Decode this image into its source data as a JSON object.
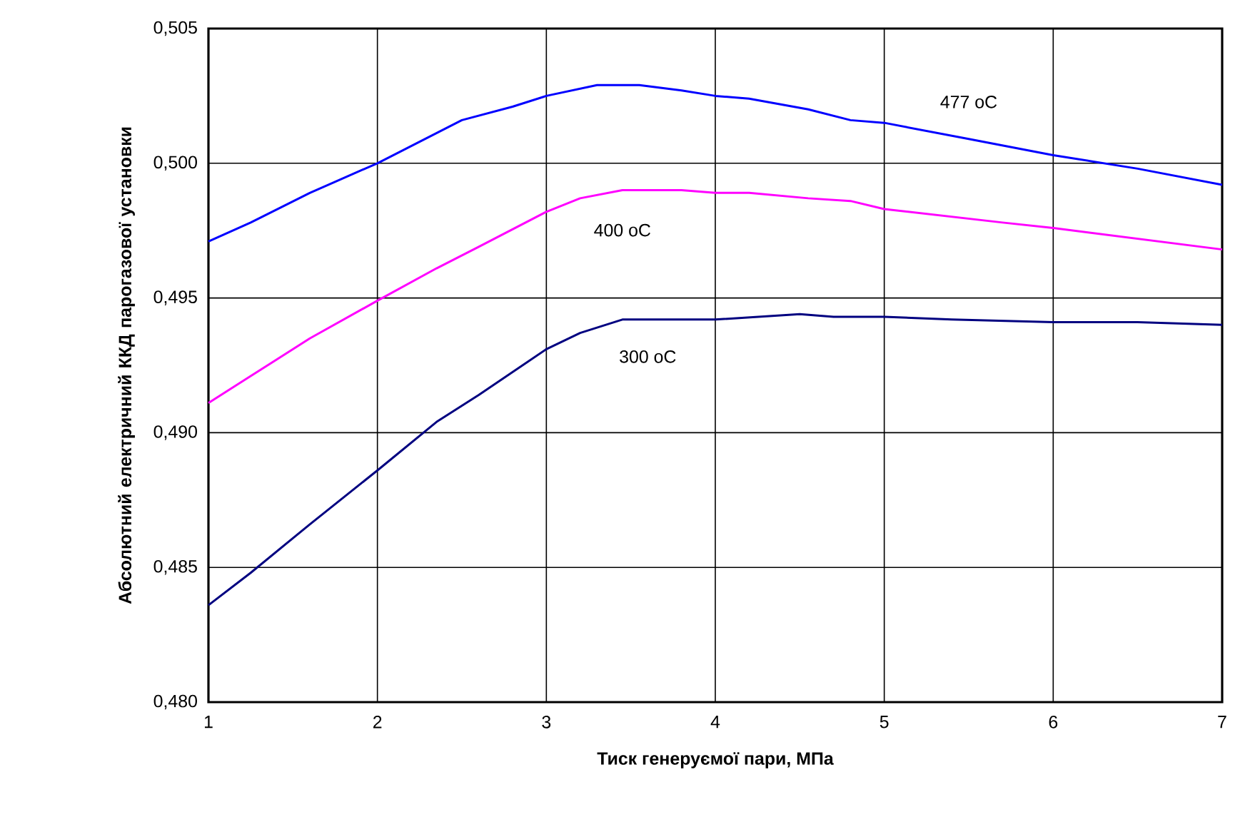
{
  "chart_data": {
    "type": "line",
    "xlabel": "Тиск генеруємої пари, МПа",
    "ylabel": "Абсолютний електричний ККД парогазової установки",
    "xlim": [
      1,
      7
    ],
    "xticks": [
      1,
      2,
      3,
      4,
      5,
      6,
      7
    ],
    "ylim": [
      0.48,
      0.505
    ],
    "yticks": [
      {
        "value": 0.48,
        "label": "0,480"
      },
      {
        "value": 0.485,
        "label": "0,485"
      },
      {
        "value": 0.49,
        "label": "0,490"
      },
      {
        "value": 0.495,
        "label": "0,495"
      },
      {
        "value": 0.5,
        "label": "0,500"
      },
      {
        "value": 0.505,
        "label": "0,505"
      }
    ],
    "grid": true,
    "series": [
      {
        "name": "477 oC",
        "color": "#0000ff",
        "x": [
          1,
          1.25,
          1.6,
          2,
          2.5,
          2.8,
          3,
          3.3,
          3.55,
          3.8,
          4,
          4.2,
          4.55,
          4.8,
          5,
          5.5,
          6,
          6.5,
          7
        ],
        "values": [
          0.4971,
          0.4978,
          0.4989,
          0.5,
          0.5016,
          0.5021,
          0.5025,
          0.5029,
          0.5029,
          0.5027,
          0.5025,
          0.5024,
          0.502,
          0.5016,
          0.5015,
          0.5009,
          0.5003,
          0.4998,
          0.4992
        ]
      },
      {
        "name": "400 oC",
        "color": "#ff00ff",
        "x": [
          1,
          1.25,
          1.6,
          2,
          2.35,
          2.6,
          3,
          3.2,
          3.45,
          3.8,
          4,
          4.2,
          4.55,
          4.8,
          5,
          5.7,
          6,
          6.5,
          7
        ],
        "values": [
          0.4911,
          0.4921,
          0.4935,
          0.4949,
          0.4961,
          0.4969,
          0.4982,
          0.4987,
          0.499,
          0.499,
          0.4989,
          0.4989,
          0.4987,
          0.4986,
          0.4983,
          0.4978,
          0.4976,
          0.4972,
          0.4968
        ]
      },
      {
        "name": "300 oC",
        "color": "#000080",
        "x": [
          1,
          1.25,
          1.6,
          2,
          2.35,
          2.6,
          3,
          3.2,
          3.45,
          3.6,
          4,
          4.5,
          4.7,
          5,
          5.4,
          6,
          6.5,
          7
        ],
        "values": [
          0.4836,
          0.4848,
          0.4866,
          0.4886,
          0.4904,
          0.4914,
          0.4931,
          0.4937,
          0.4942,
          0.4942,
          0.4942,
          0.4944,
          0.4943,
          0.4943,
          0.4942,
          0.4941,
          0.4941,
          0.494
        ]
      }
    ]
  }
}
